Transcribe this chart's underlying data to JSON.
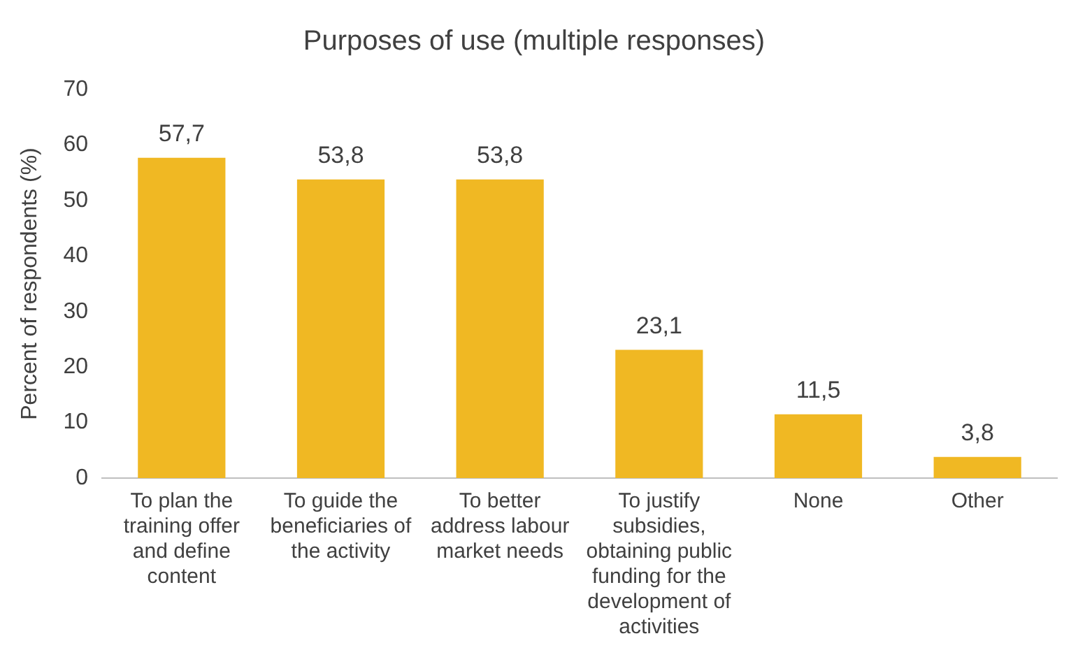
{
  "chart_data": {
    "type": "bar",
    "title": "Purposes of use (multiple responses)",
    "ylabel": "Percent of respondents (%)",
    "categories": [
      "To plan the training offer and define content",
      "To guide the beneficiaries of the activity",
      "To better address labour market needs",
      "To justify subsidies, obtaining public funding for the development of activities",
      "None",
      "Other"
    ],
    "values": [
      57.7,
      53.8,
      53.8,
      23.1,
      11.5,
      3.8
    ],
    "value_labels": [
      "57,7",
      "53,8",
      "53,8",
      "23,1",
      "11,5",
      "3,8"
    ],
    "color": "#f0b823",
    "ylim": [
      0,
      70
    ],
    "yticks": [
      0,
      10,
      20,
      30,
      40,
      50,
      60,
      70
    ],
    "grid": false,
    "legend": false
  }
}
